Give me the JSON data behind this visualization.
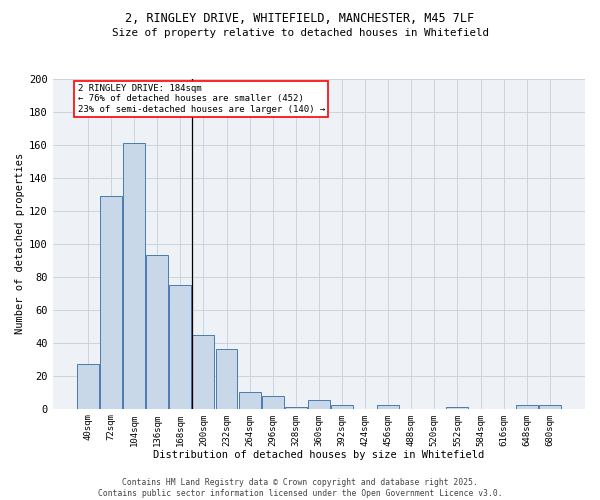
{
  "title_line1": "2, RINGLEY DRIVE, WHITEFIELD, MANCHESTER, M45 7LF",
  "title_line2": "Size of property relative to detached houses in Whitefield",
  "xlabel": "Distribution of detached houses by size in Whitefield",
  "ylabel": "Number of detached properties",
  "bar_color": "#c8d8e8",
  "bar_edge_color": "#4a7aad",
  "categories": [
    "40sqm",
    "72sqm",
    "104sqm",
    "136sqm",
    "168sqm",
    "200sqm",
    "232sqm",
    "264sqm",
    "296sqm",
    "328sqm",
    "360sqm",
    "392sqm",
    "424sqm",
    "456sqm",
    "488sqm",
    "520sqm",
    "552sqm",
    "584sqm",
    "616sqm",
    "648sqm",
    "680sqm"
  ],
  "values": [
    27,
    129,
    161,
    93,
    75,
    45,
    36,
    10,
    8,
    1,
    5,
    2,
    0,
    2,
    0,
    0,
    1,
    0,
    0,
    2,
    2
  ],
  "vline_x": 4.5,
  "annotation_title": "2 RINGLEY DRIVE: 184sqm",
  "annotation_line2": "← 76% of detached houses are smaller (452)",
  "annotation_line3": "23% of semi-detached houses are larger (140) →",
  "ylim": [
    0,
    200
  ],
  "yticks": [
    0,
    20,
    40,
    60,
    80,
    100,
    120,
    140,
    160,
    180,
    200
  ],
  "footer_line1": "Contains HM Land Registry data © Crown copyright and database right 2025.",
  "footer_line2": "Contains public sector information licensed under the Open Government Licence v3.0.",
  "bg_color": "#eef2f7",
  "grid_color": "#c5d0dc"
}
